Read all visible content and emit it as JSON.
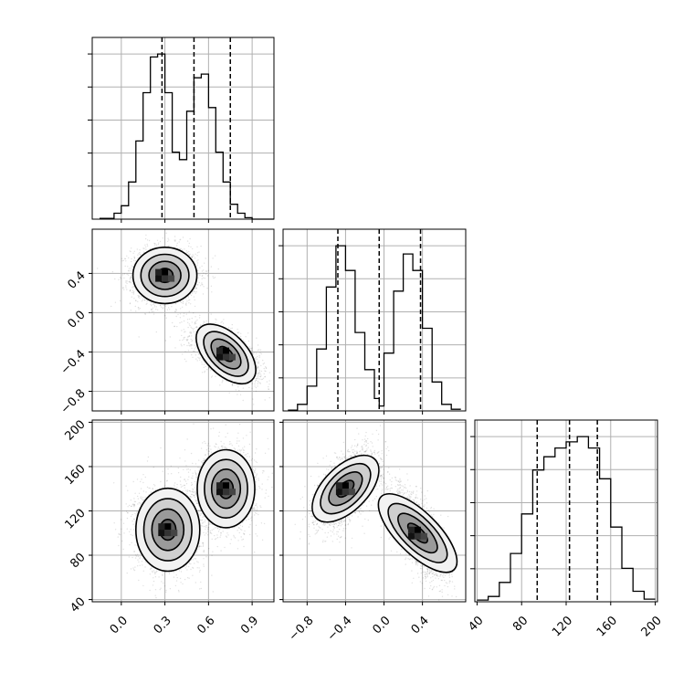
{
  "chart_data": {
    "type": "corner",
    "grid": true,
    "panels": [
      {
        "id": "hist-0",
        "type": "step-histogram",
        "xlim": [
          -0.2,
          1.05
        ],
        "bin_edges": [
          -0.15,
          -0.05,
          0.0,
          0.05,
          0.1,
          0.15,
          0.2,
          0.25,
          0.3,
          0.35,
          0.4,
          0.45,
          0.5,
          0.55,
          0.6,
          0.65,
          0.7,
          0.75,
          0.8,
          0.85,
          0.9,
          0.95,
          1.0,
          1.05
        ],
        "counts": [
          1,
          8,
          18,
          50,
          105,
          170,
          218,
          222,
          170,
          90,
          80,
          145,
          190,
          195,
          150,
          90,
          50,
          20,
          8,
          2,
          0,
          0,
          0
        ],
        "quantile_lines": [
          0.28,
          0.5,
          0.75
        ]
      },
      {
        "id": "hist-1",
        "type": "step-histogram",
        "xlim": [
          -1.05,
          0.85
        ],
        "bin_edges": [
          -1.0,
          -0.9,
          -0.8,
          -0.7,
          -0.6,
          -0.5,
          -0.4,
          -0.3,
          -0.2,
          -0.1,
          -0.05,
          0.0,
          0.1,
          0.2,
          0.3,
          0.4,
          0.5,
          0.6,
          0.7,
          0.8
        ],
        "counts": [
          1,
          8,
          30,
          75,
          150,
          200,
          170,
          95,
          50,
          15,
          6,
          70,
          145,
          190,
          170,
          100,
          35,
          8,
          2
        ],
        "quantile_lines": [
          -0.48,
          -0.05,
          0.38
        ]
      },
      {
        "id": "hist-2",
        "type": "step-histogram",
        "xlim": [
          38,
          202
        ],
        "bin_edges": [
          40,
          50,
          60,
          70,
          80,
          90,
          100,
          110,
          120,
          130,
          140,
          150,
          160,
          170,
          180,
          190,
          200
        ],
        "counts": [
          2,
          6,
          22,
          55,
          100,
          150,
          165,
          175,
          182,
          188,
          175,
          140,
          85,
          38,
          12,
          3
        ],
        "quantile_lines": [
          94,
          123,
          148
        ]
      },
      {
        "id": "scatter-1-0",
        "type": "2d-density",
        "xlim": [
          -0.2,
          1.05
        ],
        "ylim": [
          -1.0,
          0.85
        ],
        "clusters": [
          {
            "center": [
              0.3,
              0.38
            ],
            "sigma": [
              0.1,
              0.13
            ],
            "rho": 0.0
          },
          {
            "center": [
              0.72,
              -0.42
            ],
            "sigma": [
              0.1,
              0.12
            ],
            "rho": -0.6
          }
        ]
      },
      {
        "id": "scatter-2-0",
        "type": "2d-density",
        "xlim": [
          -0.2,
          1.05
        ],
        "ylim": [
          38,
          202
        ],
        "clusters": [
          {
            "center": [
              0.32,
              103
            ],
            "sigma": [
              0.1,
              17
            ],
            "rho": 0.0
          },
          {
            "center": [
              0.72,
              140
            ],
            "sigma": [
              0.09,
              16
            ],
            "rho": 0.0
          }
        ]
      },
      {
        "id": "scatter-2-1",
        "type": "2d-density",
        "xlim": [
          -1.05,
          0.85
        ],
        "ylim": [
          38,
          202
        ],
        "clusters": [
          {
            "center": [
              -0.4,
              140
            ],
            "sigma": [
              0.13,
              15
            ],
            "rho": 0.55
          },
          {
            "center": [
              0.35,
              100
            ],
            "sigma": [
              0.13,
              18
            ],
            "rho": -0.7
          }
        ]
      }
    ],
    "ticks": {
      "x0": [
        0.0,
        0.3,
        0.6,
        0.9
      ],
      "x1": [
        -0.8,
        -0.4,
        0.0,
        0.4
      ],
      "x2": [
        40,
        80,
        120,
        160,
        200
      ],
      "y1": [
        -0.8,
        -0.4,
        0.0,
        0.4
      ],
      "y2": [
        40,
        80,
        120,
        160,
        200
      ]
    },
    "tick_labels": {
      "x0": [
        "0.0",
        "0.3",
        "0.6",
        "0.9"
      ],
      "x1": [
        "−0.8",
        "−0.4",
        "0.0",
        "0.4"
      ],
      "x2": [
        "40",
        "80",
        "120",
        "160",
        "200"
      ],
      "y1": [
        "−0.8",
        "−0.4",
        "0.0",
        "0.4"
      ],
      "y2": [
        "40",
        "80",
        "120",
        "160",
        "200"
      ]
    },
    "colors": {
      "line": "#000000",
      "grid": "#b0b0b0",
      "point": "#000000",
      "density_cmap": [
        "#ffffff",
        "#000000"
      ]
    }
  }
}
